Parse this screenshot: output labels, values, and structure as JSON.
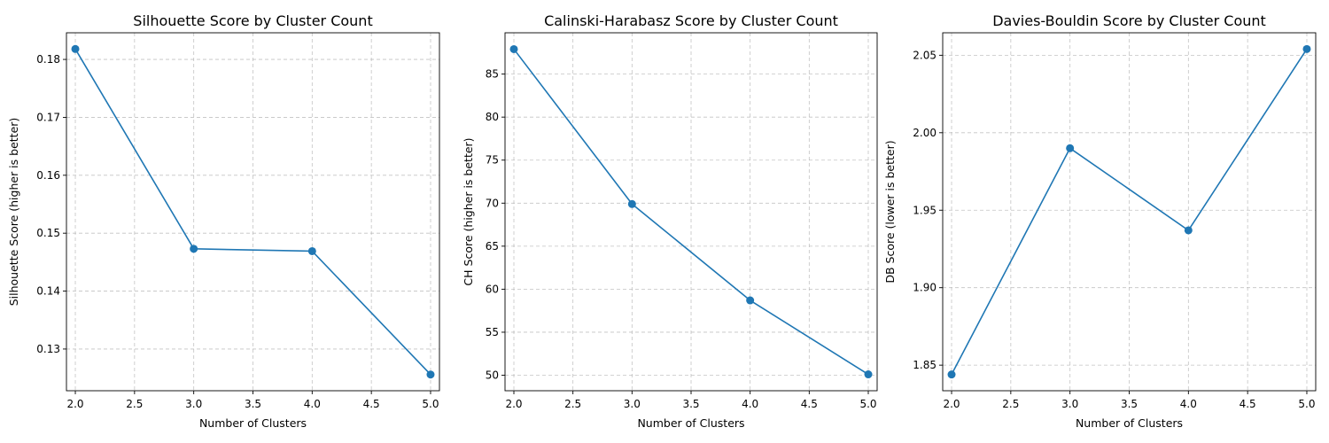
{
  "chart_data": [
    {
      "type": "line",
      "title": "Silhouette Score by Cluster Count",
      "xlabel": "Number of Clusters",
      "ylabel": "Silhouette Score (higher is better)",
      "x": [
        2,
        3,
        4,
        5
      ],
      "y": [
        0.1818,
        0.1473,
        0.1469,
        0.1256
      ],
      "xlim": [
        1.925,
        5.075
      ],
      "ylim": [
        0.1228,
        0.1846
      ],
      "xticks": [
        2.0,
        2.5,
        3.0,
        3.5,
        4.0,
        4.5,
        5.0
      ],
      "xtick_labels": [
        "2.0",
        "2.5",
        "3.0",
        "3.5",
        "4.0",
        "4.5",
        "5.0"
      ],
      "yticks": [
        0.13,
        0.14,
        0.15,
        0.16,
        0.17,
        0.18
      ],
      "ytick_labels": [
        "0.13",
        "0.14",
        "0.15",
        "0.16",
        "0.17",
        "0.18"
      ],
      "grid": true,
      "marker": "circle",
      "color": "#1f77b4"
    },
    {
      "type": "line",
      "title": "Calinski-Harabasz Score by Cluster Count",
      "xlabel": "Number of Clusters",
      "ylabel": "CH Score (higher is better)",
      "x": [
        2,
        3,
        4,
        5
      ],
      "y": [
        87.9,
        69.9,
        58.7,
        50.1
      ],
      "xlim": [
        1.925,
        5.075
      ],
      "ylim": [
        48.2,
        89.8
      ],
      "xticks": [
        2.0,
        2.5,
        3.0,
        3.5,
        4.0,
        4.5,
        5.0
      ],
      "xtick_labels": [
        "2.0",
        "2.5",
        "3.0",
        "3.5",
        "4.0",
        "4.5",
        "5.0"
      ],
      "yticks": [
        50,
        55,
        60,
        65,
        70,
        75,
        80,
        85
      ],
      "ytick_labels": [
        "50",
        "55",
        "60",
        "65",
        "70",
        "75",
        "80",
        "85"
      ],
      "grid": true,
      "marker": "circle",
      "color": "#1f77b4"
    },
    {
      "type": "line",
      "title": "Davies-Bouldin Score by Cluster Count",
      "xlabel": "Number of Clusters",
      "ylabel": "DB Score (lower is better)",
      "x": [
        2,
        3,
        4,
        5
      ],
      "y": [
        1.844,
        1.99,
        1.937,
        2.054
      ],
      "xlim": [
        1.925,
        5.075
      ],
      "ylim": [
        1.8335,
        2.0645
      ],
      "xticks": [
        2.0,
        2.5,
        3.0,
        3.5,
        4.0,
        4.5,
        5.0
      ],
      "xtick_labels": [
        "2.0",
        "2.5",
        "3.0",
        "3.5",
        "4.0",
        "4.5",
        "5.0"
      ],
      "yticks": [
        1.85,
        1.9,
        1.95,
        2.0,
        2.05
      ],
      "ytick_labels": [
        "1.85",
        "1.90",
        "1.95",
        "2.00",
        "2.05"
      ],
      "grid": true,
      "marker": "circle",
      "color": "#1f77b4"
    }
  ]
}
